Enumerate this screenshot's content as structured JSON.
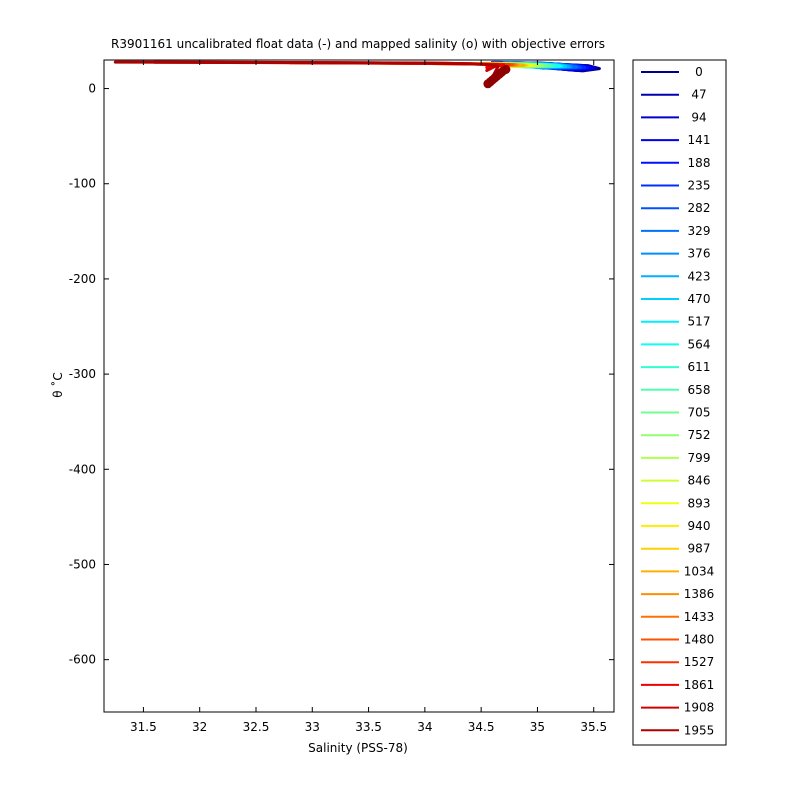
{
  "chart_data": {
    "type": "line",
    "title": "R3901161 uncalibrated float data (-) and mapped salinity (o) with objective errors",
    "xlabel": "Salinity (PSS-78)",
    "ylabel": "θ ˚C",
    "xlim": [
      31.15,
      35.68
    ],
    "ylim": [
      -655,
      30
    ],
    "xticks": [
      31.5,
      32,
      32.5,
      33,
      33.5,
      34,
      34.5,
      35,
      35.5
    ],
    "xtick_labels": [
      "31.5",
      "32",
      "32.5",
      "33",
      "33.5",
      "34",
      "34.5",
      "35",
      "35.5"
    ],
    "yticks": [
      0,
      -100,
      -200,
      -300,
      -400,
      -500,
      -600
    ],
    "ytick_labels": [
      "0",
      "-100",
      "-200",
      "-300",
      "-400",
      "-500",
      "-600"
    ],
    "grid": false,
    "legend_position": "outside-right",
    "series": [
      {
        "name": "0",
        "color": "#00008f",
        "x": [
          34.6,
          35.0,
          35.45,
          35.55,
          35.4,
          34.9
        ],
        "y": [
          27.5,
          26.5,
          24,
          21,
          18.5,
          24
        ]
      },
      {
        "name": "47",
        "color": "#0000b0",
        "x": [
          34.62,
          35.0,
          35.45,
          35.52,
          35.35,
          34.9
        ],
        "y": [
          27.5,
          26.5,
          24,
          21.5,
          19,
          24
        ]
      },
      {
        "name": "94",
        "color": "#0000d0",
        "x": [
          34.65,
          35.05,
          35.4,
          35.5,
          35.3,
          34.95
        ],
        "y": [
          27.5,
          26.5,
          24,
          21.5,
          19.5,
          24
        ]
      },
      {
        "name": "141",
        "color": "#0000ef",
        "x": [
          34.7,
          35.05,
          35.4,
          35.48,
          35.25,
          34.95
        ],
        "y": [
          27.3,
          26.3,
          24,
          21.5,
          20,
          24
        ]
      },
      {
        "name": "188",
        "color": "#0010ff",
        "x": [
          34.7,
          35.1,
          35.35,
          35.45,
          35.2,
          34.95
        ],
        "y": [
          27.3,
          26.3,
          24,
          22,
          20.5,
          24
        ]
      },
      {
        "name": "235",
        "color": "#0030ff",
        "x": [
          34.72,
          35.1,
          35.35,
          35.42,
          35.15,
          34.95
        ],
        "y": [
          27.2,
          26.2,
          24,
          22,
          21,
          24
        ]
      },
      {
        "name": "282",
        "color": "#0050ff",
        "x": [
          34.75,
          35.1,
          35.3,
          35.38,
          35.1,
          34.95
        ],
        "y": [
          27.2,
          26.2,
          24.2,
          22.3,
          21.3,
          24
        ]
      },
      {
        "name": "329",
        "color": "#0070ff",
        "x": [
          34.75,
          35.1,
          35.28,
          35.35,
          35.05,
          34.9
        ],
        "y": [
          27.1,
          26.1,
          24.3,
          22.5,
          21.5,
          24
        ]
      },
      {
        "name": "376",
        "color": "#008fff",
        "x": [
          34.75,
          35.05,
          35.25,
          35.3,
          35.0,
          34.9
        ],
        "y": [
          27.0,
          26.0,
          24.5,
          22.8,
          22,
          24
        ]
      },
      {
        "name": "423",
        "color": "#00afff",
        "x": [
          34.75,
          35.05,
          35.22,
          35.28,
          34.98,
          34.9
        ],
        "y": [
          26.9,
          25.9,
          24.5,
          23,
          22.3,
          24
        ]
      },
      {
        "name": "470",
        "color": "#00cfff",
        "x": [
          34.72,
          35.0,
          35.2,
          35.25,
          34.95,
          34.85
        ],
        "y": [
          26.8,
          25.8,
          24.5,
          23.2,
          22.5,
          24
        ]
      },
      {
        "name": "517",
        "color": "#00efff",
        "x": [
          34.7,
          35.0,
          35.18,
          35.22,
          34.9,
          34.85
        ],
        "y": [
          26.8,
          25.8,
          24.6,
          23.3,
          22.8,
          24
        ]
      },
      {
        "name": "564",
        "color": "#10ffef",
        "x": [
          34.7,
          34.95,
          35.15,
          35.2,
          34.88,
          34.8
        ],
        "y": [
          26.7,
          25.7,
          24.6,
          23.5,
          23,
          24
        ]
      },
      {
        "name": "611",
        "color": "#30ffcf",
        "x": [
          34.65,
          34.95,
          35.12,
          35.15,
          34.85,
          34.8
        ],
        "y": [
          26.6,
          25.6,
          24.6,
          23.5,
          23,
          24
        ]
      },
      {
        "name": "658",
        "color": "#50ffaf",
        "x": [
          34.62,
          34.9,
          35.1,
          35.12,
          34.82,
          34.78
        ],
        "y": [
          26.6,
          25.6,
          24.7,
          23.7,
          23.2,
          24
        ]
      },
      {
        "name": "705",
        "color": "#70ff8f",
        "x": [
          34.6,
          34.9,
          35.05,
          35.08,
          34.8,
          34.75
        ],
        "y": [
          26.5,
          25.5,
          24.7,
          23.8,
          23.3,
          24
        ]
      },
      {
        "name": "752",
        "color": "#8fff70",
        "x": [
          34.6,
          34.85,
          35.02,
          35.05,
          34.78,
          34.72
        ],
        "y": [
          26.5,
          25.5,
          24.8,
          24,
          23.5,
          24
        ]
      },
      {
        "name": "799",
        "color": "#afff50",
        "x": [
          34.55,
          34.85,
          35.0,
          35.02,
          34.75,
          34.7
        ],
        "y": [
          26.4,
          25.4,
          24.8,
          24,
          23.5,
          24
        ]
      },
      {
        "name": "846",
        "color": "#cfff30",
        "x": [
          34.55,
          34.8,
          34.95,
          34.98,
          34.72,
          34.68
        ],
        "y": [
          26.4,
          25.4,
          24.8,
          24.1,
          23.6,
          24
        ]
      },
      {
        "name": "893",
        "color": "#efff10",
        "x": [
          34.5,
          34.78,
          34.92,
          34.95,
          34.7,
          34.66
        ],
        "y": [
          26.3,
          25.3,
          24.8,
          24.2,
          23.7,
          24
        ]
      },
      {
        "name": "940",
        "color": "#ffef00",
        "x": [
          34.5,
          34.75,
          34.9,
          34.92,
          34.68,
          34.64
        ],
        "y": [
          26.3,
          25.3,
          24.9,
          24.2,
          23.8,
          24
        ]
      },
      {
        "name": "987",
        "color": "#ffcf00",
        "x": [
          34.45,
          34.72,
          34.88,
          34.9,
          34.66,
          34.62
        ],
        "y": [
          26.2,
          25.2,
          24.9,
          24.3,
          23.9,
          24
        ]
      },
      {
        "name": "1034",
        "color": "#ffaf00",
        "x": [
          34.4,
          34.7,
          34.85,
          34.88,
          34.65,
          34.6
        ],
        "y": [
          26.2,
          25.2,
          24.9,
          24.3,
          23.9,
          24
        ]
      },
      {
        "name": "1386",
        "color": "#ff8f00",
        "x": [
          33.8,
          34.3,
          34.65,
          34.82,
          34.7,
          34.6
        ],
        "y": [
          26.5,
          26.0,
          25.5,
          25.0,
          24.3,
          24
        ]
      },
      {
        "name": "1433",
        "color": "#ff7000",
        "x": [
          33.5,
          34.2,
          34.6,
          34.8,
          34.68,
          34.58
        ],
        "y": [
          26.8,
          26.2,
          25.6,
          25.0,
          24.2,
          23.8
        ]
      },
      {
        "name": "1480",
        "color": "#ff5000",
        "x": [
          33.2,
          34.0,
          34.55,
          34.78,
          34.66,
          34.56
        ],
        "y": [
          27.0,
          26.4,
          25.7,
          25.1,
          24.1,
          23.6
        ]
      },
      {
        "name": "1527",
        "color": "#ff3000",
        "x": [
          32.8,
          33.8,
          34.5,
          34.75,
          34.64,
          34.55
        ],
        "y": [
          27.2,
          26.6,
          25.8,
          25.1,
          24.0,
          23.4
        ]
      },
      {
        "name": "1861",
        "color": "#ef0000",
        "x": [
          32.0,
          33.5,
          34.4,
          34.7,
          34.6,
          34.55
        ],
        "y": [
          27.5,
          27.0,
          26.0,
          25.0,
          23.5,
          22
        ]
      },
      {
        "name": "1908",
        "color": "#cf0000",
        "x": [
          31.6,
          33.0,
          34.2,
          34.65,
          34.6,
          34.55
        ],
        "y": [
          27.7,
          27.2,
          26.5,
          25.0,
          22,
          19
        ]
      },
      {
        "name": "1955",
        "color": "#af0000",
        "x": [
          31.25,
          32.5,
          34.0,
          34.55,
          34.65,
          34.6,
          34.55
        ],
        "y": [
          27.8,
          27.5,
          26.8,
          25.5,
          23,
          12,
          5
        ]
      }
    ],
    "mapped_markers": {
      "color": "#8f0000",
      "x": [
        34.56,
        34.58,
        34.6,
        34.62,
        34.64,
        34.66,
        34.68,
        34.7,
        34.72
      ],
      "y": [
        5,
        7,
        9,
        11,
        13,
        15,
        17,
        19,
        20
      ]
    }
  }
}
